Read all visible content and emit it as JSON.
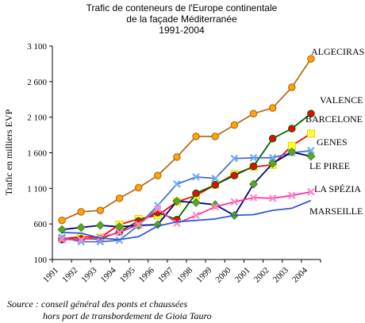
{
  "chart_data": {
    "type": "line",
    "title": [
      "Trafic de conteneurs de l'Europe continentale",
      "de la façade Méditerranée",
      "1991-2004"
    ],
    "ylabel": "Trafic en milliers EVP",
    "xlabel": "",
    "ylim": [
      100,
      3100
    ],
    "yticks": [
      "100",
      "600",
      "1 100",
      "1 600",
      "2 100",
      "2 600",
      "3 100"
    ],
    "ytick_values": [
      100,
      600,
      1100,
      1600,
      2100,
      2600,
      3100
    ],
    "categories": [
      "1991",
      "1992",
      "1993",
      "1994",
      "1995",
      "1996",
      "1997",
      "1998",
      "1999",
      "2000",
      "2001",
      "2002",
      "2003",
      "2004"
    ],
    "grid": false,
    "source": [
      "Source : conseil général des ponts et chaussées",
      "hors port de transbordement de Gioia Tauro"
    ],
    "series": [
      {
        "name": "ALGECIRAS",
        "color": "#B86A1E",
        "marker": "circle",
        "marker_fill": "#FFA500",
        "values": [
          650,
          770,
          790,
          960,
          1110,
          1280,
          1540,
          1830,
          1830,
          1990,
          2150,
          2230,
          2520,
          2920
        ]
      },
      {
        "name": "VALENCE",
        "color": "#FF0000",
        "marker": "square",
        "marker_fill": "#FFFF33",
        "values": [
          390,
          420,
          410,
          590,
          670,
          720,
          910,
          1000,
          1150,
          1300,
          1400,
          1430,
          1700,
          1870
        ]
      },
      {
        "name": "BARCELONE",
        "color": "#006400",
        "marker": "circle",
        "marker_fill": "#FF0000",
        "values": [
          380,
          390,
          390,
          490,
          640,
          760,
          660,
          1030,
          1150,
          1280,
          1410,
          1800,
          1940,
          2150
        ]
      },
      {
        "name": "GENES",
        "color": "#4472C4",
        "marker": "x",
        "marker_fill": "#6FA8FF",
        "values": [
          410,
          350,
          350,
          370,
          580,
          860,
          1160,
          1260,
          1240,
          1520,
          1530,
          1530,
          1600,
          1630
        ]
      },
      {
        "name": "LE PIREE",
        "color": "#000080",
        "marker": "diamond",
        "marker_fill": "#55AA22",
        "values": [
          520,
          550,
          580,
          560,
          580,
          590,
          920,
          900,
          870,
          720,
          1160,
          1450,
          1610,
          1550
        ]
      },
      {
        "name": "LA SPÉZIA",
        "color": "#FF3399",
        "marker": "x",
        "marker_fill": "#FF88CC",
        "values": [
          380,
          380,
          410,
          480,
          590,
          810,
          610,
          720,
          840,
          910,
          970,
          960,
          1000,
          1050
        ]
      },
      {
        "name": "MARSEILLE",
        "color": "#3355DD",
        "marker": "none",
        "marker_fill": "#3355DD",
        "values": [
          480,
          470,
          400,
          380,
          420,
          570,
          630,
          650,
          670,
          720,
          730,
          790,
          820,
          930
        ]
      }
    ]
  }
}
